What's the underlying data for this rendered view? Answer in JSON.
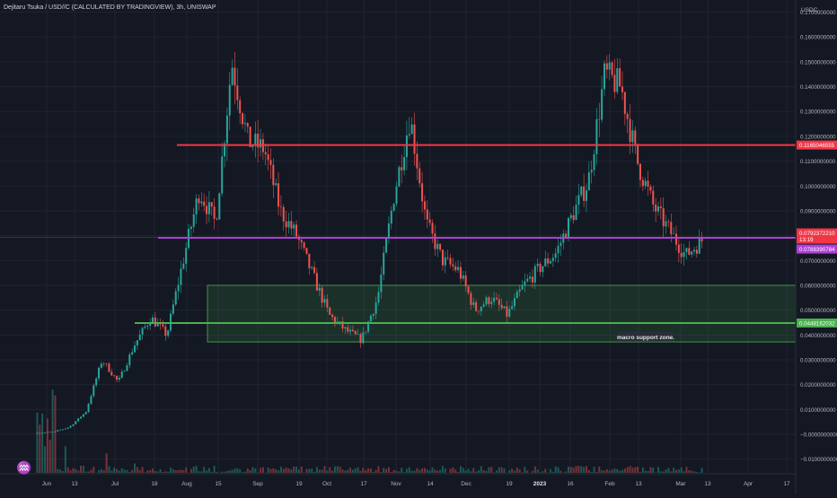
{
  "header": {
    "title": "Dejitaru Tsuka / USD//C (CALCULATED BY TRADINGVIEW), 3h, UNISWAP"
  },
  "icons": {
    "logo": "tradingview-logo-icon"
  },
  "colors": {
    "background": "#141823",
    "grid": "#1f2330",
    "candle_up": "#26a69a",
    "candle_down": "#ef5350",
    "resistance_line": "#f23645",
    "purple_line": "#b03fd8",
    "support_line": "#4caf50",
    "zone_fill": "rgba(76,175,80,0.16)",
    "zone_border": "#4caf50"
  },
  "chart_data": {
    "type": "candlestick",
    "title": "Dejitaru Tsuka / USD//C (CALCULATED BY TRADINGVIEW), 3h, UNISWAP",
    "y_axis_unit": "USDC",
    "ylim": [
      -0.013,
      0.172
    ],
    "y_ticks": [
      "0.1700000000",
      "0.1600000000",
      "0.1500000000",
      "0.1400000000",
      "0.1300000000",
      "0.1200000000",
      "0.1100000000",
      "0.1000000000",
      "0.0900000000",
      "0.0800000000",
      "0.0700000000",
      "0.0600000000",
      "0.0500000000",
      "0.0400000000",
      "0.0300000000",
      "0.0200000000",
      "0.0100000000",
      "−0.0000000000",
      "−0.0100000000"
    ],
    "x_ticks": [
      "Jun",
      "13",
      "Jul",
      "18",
      "Aug",
      "15",
      "Sep",
      "19",
      "Oct",
      "17",
      "Nov",
      "14",
      "Dec",
      "19",
      "2023",
      "16",
      "Feb",
      "13",
      "Mar",
      "13",
      "Apr",
      "17"
    ],
    "series_points": [
      [
        "Jun",
        "0.0006"
      ],
      [
        "13",
        "0.0008"
      ],
      [
        "Jul",
        "0.0030"
      ],
      [
        "15-Jul",
        "0.009"
      ],
      [
        "18",
        "0.030"
      ],
      [
        "late-Jul",
        "0.021"
      ],
      [
        "Aug",
        "0.036"
      ],
      [
        "8-Aug",
        "0.047"
      ],
      [
        "15",
        "0.040"
      ],
      [
        "Sep",
        "0.070"
      ],
      [
        "12-Sep",
        "0.098"
      ],
      [
        "19",
        "0.085"
      ],
      [
        "22-Sep",
        "0.150"
      ],
      [
        "26-Sep",
        "0.118"
      ],
      [
        "Oct",
        "0.115"
      ],
      [
        "10-Oct",
        "0.090"
      ],
      [
        "17",
        "0.080"
      ],
      [
        "24-Oct",
        "0.064"
      ],
      [
        "Nov",
        "0.048"
      ],
      [
        "7-Nov",
        "0.042"
      ],
      [
        "14",
        "0.038"
      ],
      [
        "21-Nov",
        "0.055"
      ],
      [
        "28-Nov",
        "0.096"
      ],
      [
        "Dec",
        "0.128"
      ],
      [
        "5-Dec",
        "0.085"
      ],
      [
        "12-Dec",
        "0.070"
      ],
      [
        "19",
        "0.066"
      ],
      [
        "26-Dec",
        "0.050"
      ],
      [
        "2023",
        "0.055"
      ],
      [
        "9-Jan",
        "0.048"
      ],
      [
        "16",
        "0.060"
      ],
      [
        "23-Jan",
        "0.067"
      ],
      [
        "30-Jan",
        "0.073"
      ],
      [
        "Feb",
        "0.088"
      ],
      [
        "6-Feb",
        "0.102"
      ],
      [
        "13",
        "0.145"
      ],
      [
        "17-Feb",
        "0.140"
      ],
      [
        "20-Feb",
        "0.110"
      ],
      [
        "27-Feb",
        "0.092"
      ],
      [
        "Mar",
        "0.082"
      ],
      [
        "8-Mar",
        "0.072"
      ],
      [
        "13",
        "0.078"
      ]
    ],
    "horizontal_lines": [
      {
        "name": "resistance",
        "value": 0.1165046555,
        "label": "0.1165046555",
        "color": "#f23645"
      },
      {
        "name": "purple",
        "value": 0.0793,
        "color": "#b03fd8"
      },
      {
        "name": "support",
        "value": 0.0448162032,
        "label": "0.0448162032",
        "color": "#4caf50"
      }
    ],
    "zone": {
      "top": 0.06,
      "bottom": 0.0372,
      "label": "macro support zone."
    },
    "price_labels": [
      {
        "text": "0.0792372210",
        "bg": "#f23645"
      },
      {
        "text": "13:19",
        "bg": "#f23645"
      },
      {
        "text": "0.0788390784",
        "bg": "#b03fd8"
      }
    ],
    "grid": true
  }
}
